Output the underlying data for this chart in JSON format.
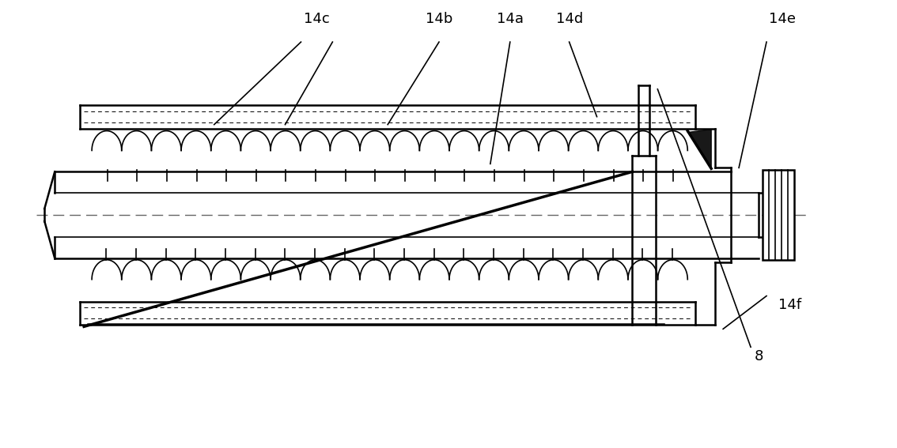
{
  "bg_color": "#ffffff",
  "line_color": "#000000",
  "fig_width": 11.34,
  "fig_height": 5.67,
  "lw_main": 1.8,
  "lw_thin": 1.2,
  "lw_thick": 2.5,
  "lw_dashed": 1.0,
  "font_size": 13,
  "xlim": [
    0,
    1134
  ],
  "ylim": [
    0,
    567
  ]
}
